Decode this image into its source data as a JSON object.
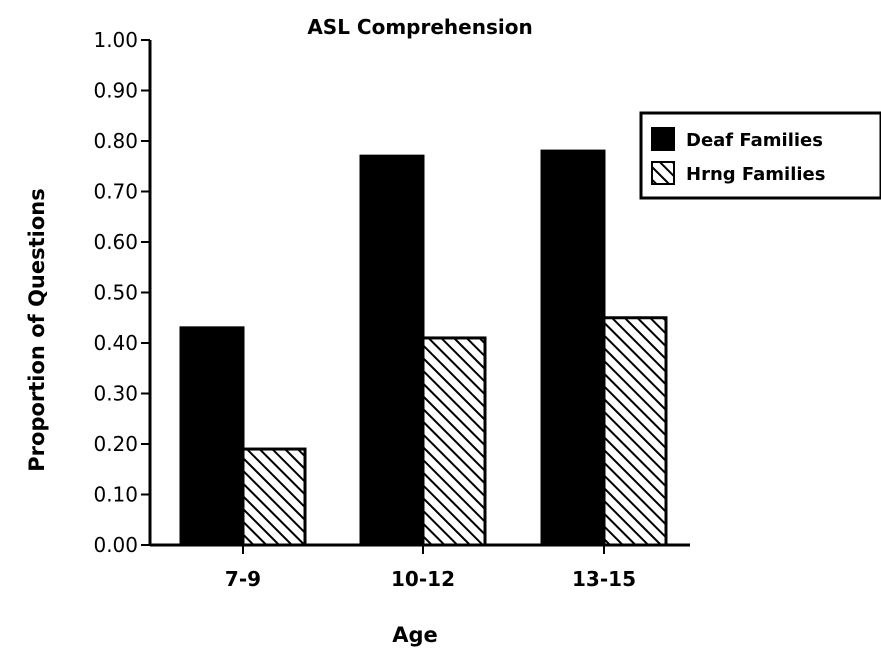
{
  "chart_data": {
    "type": "bar",
    "title": "ASL Comprehension",
    "xlabel": "Age",
    "ylabel": "Proportion of Questions",
    "categories": [
      "7-9",
      "10-12",
      "13-15"
    ],
    "series": [
      {
        "name": "Deaf Families",
        "values": [
          0.43,
          0.77,
          0.78
        ],
        "color": "#000000",
        "pattern": "solid"
      },
      {
        "name": "Hrng Families",
        "values": [
          0.19,
          0.41,
          0.45
        ],
        "color": "#000000",
        "pattern": "diagonal-hatch"
      }
    ],
    "ylim": [
      0,
      1
    ],
    "yticks": [
      "0.00",
      "0.10",
      "0.20",
      "0.30",
      "0.40",
      "0.50",
      "0.60",
      "0.70",
      "0.80",
      "0.90",
      "1.00"
    ],
    "grid": false,
    "legend": {
      "placement": "right"
    }
  }
}
